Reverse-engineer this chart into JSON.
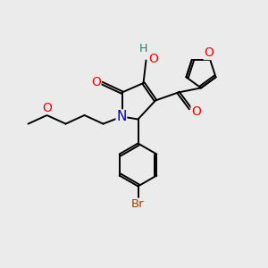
{
  "bg_color": "#ebebeb",
  "atom_colors": {
    "O": "#ff0000",
    "N": "#0000cc",
    "Br": "#994400",
    "H": "#008888",
    "C": "#000000"
  },
  "line_color": "#000000",
  "line_width": 1.4,
  "font_size": 8.5,
  "figsize": [
    3.0,
    3.0
  ],
  "dpi": 100
}
